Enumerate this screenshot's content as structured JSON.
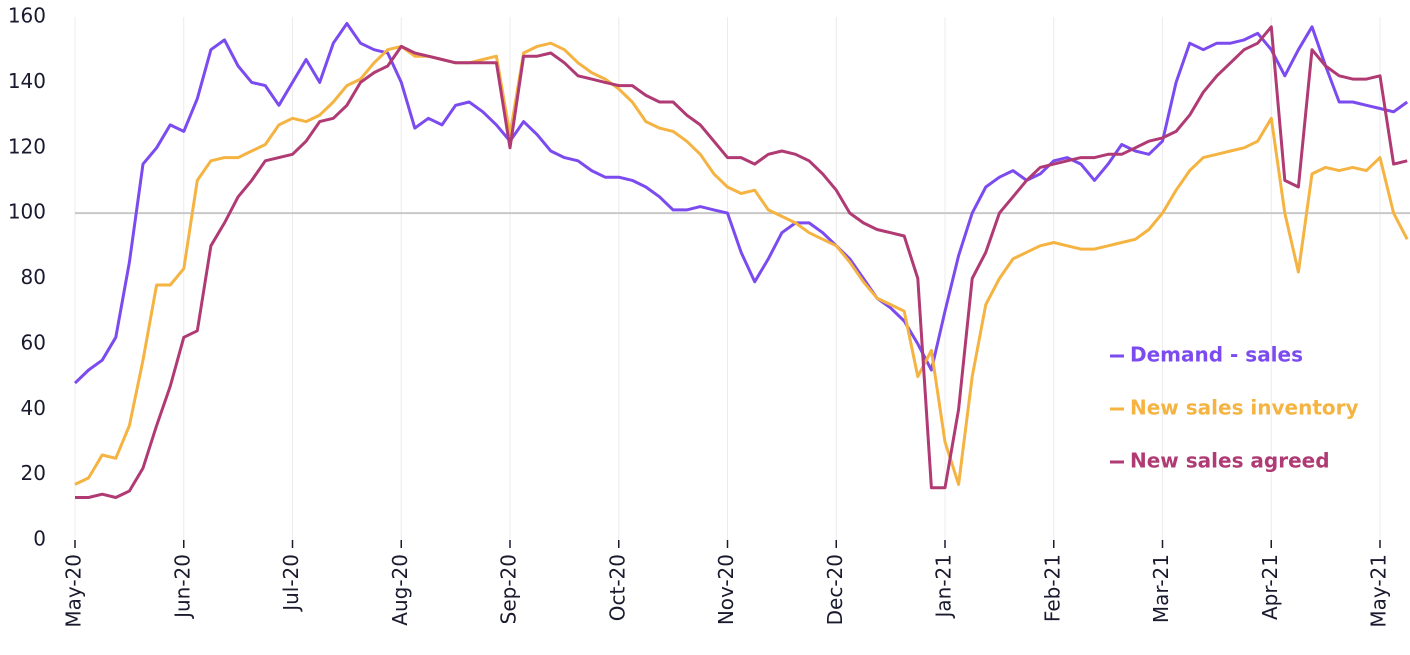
{
  "chart_data": {
    "type": "line",
    "categories": [
      "May-20",
      null,
      null,
      null,
      null,
      null,
      null,
      null,
      "Jun-20",
      null,
      null,
      null,
      null,
      null,
      null,
      null,
      "Jul-20",
      null,
      null,
      null,
      null,
      null,
      null,
      null,
      "Aug-20",
      null,
      null,
      null,
      null,
      null,
      null,
      null,
      "Sep-20",
      null,
      null,
      null,
      null,
      null,
      null,
      null,
      "Oct-20",
      null,
      null,
      null,
      null,
      null,
      null,
      null,
      "Nov-20",
      null,
      null,
      null,
      null,
      null,
      null,
      null,
      "Dec-20",
      null,
      null,
      null,
      null,
      null,
      null,
      null,
      "Jan-21",
      null,
      null,
      null,
      null,
      null,
      null,
      null,
      "Feb-21",
      null,
      null,
      null,
      null,
      null,
      null,
      null,
      "Mar-21",
      null,
      null,
      null,
      null,
      null,
      null,
      null,
      "Apr-21",
      null,
      null,
      null,
      null,
      null,
      null,
      null,
      "May-21",
      null,
      null
    ],
    "series": [
      {
        "name": "Demand - sales",
        "color": "#7b4bef",
        "values": [
          48,
          52,
          55,
          62,
          85,
          115,
          120,
          127,
          125,
          135,
          150,
          153,
          145,
          140,
          139,
          133,
          140,
          147,
          140,
          152,
          158,
          152,
          150,
          149,
          140,
          126,
          129,
          127,
          133,
          134,
          131,
          127,
          122,
          128,
          124,
          119,
          117,
          116,
          113,
          111,
          111,
          110,
          108,
          105,
          101,
          101,
          102,
          101,
          100,
          88,
          79,
          86,
          94,
          97,
          97,
          94,
          90,
          86,
          80,
          74,
          71,
          67,
          60,
          52,
          70,
          87,
          100,
          108,
          111,
          113,
          110,
          112,
          116,
          117,
          115,
          110,
          115,
          121,
          119,
          118,
          122,
          140,
          152,
          150,
          152,
          152,
          153,
          155,
          150,
          142,
          150,
          157,
          145,
          134,
          134,
          133,
          132,
          131,
          134
        ]
      },
      {
        "name": "New sales inventory",
        "color": "#f5b342",
        "values": [
          17,
          19,
          26,
          25,
          35,
          55,
          78,
          78,
          83,
          110,
          116,
          117,
          117,
          119,
          121,
          127,
          129,
          128,
          130,
          134,
          139,
          141,
          146,
          150,
          151,
          148,
          148,
          147,
          146,
          146,
          147,
          148,
          124,
          149,
          151,
          152,
          150,
          146,
          143,
          141,
          138,
          134,
          128,
          126,
          125,
          122,
          118,
          112,
          108,
          106,
          107,
          101,
          99,
          97,
          94,
          92,
          90,
          85,
          79,
          74,
          72,
          70,
          50,
          58,
          30,
          17,
          50,
          72,
          80,
          86,
          88,
          90,
          91,
          90,
          89,
          89,
          90,
          91,
          92,
          95,
          100,
          107,
          113,
          117,
          118,
          119,
          120,
          122,
          129,
          100,
          82,
          112,
          114,
          113,
          114,
          113,
          117,
          100,
          92
        ]
      },
      {
        "name": "New sales agreed",
        "color": "#b03a74",
        "values": [
          13,
          13,
          14,
          13,
          15,
          22,
          35,
          47,
          62,
          64,
          90,
          97,
          105,
          110,
          116,
          117,
          118,
          122,
          128,
          129,
          133,
          140,
          143,
          145,
          151,
          149,
          148,
          147,
          146,
          146,
          146,
          146,
          120,
          148,
          148,
          149,
          146,
          142,
          141,
          140,
          139,
          139,
          136,
          134,
          134,
          130,
          127,
          122,
          117,
          117,
          115,
          118,
          119,
          118,
          116,
          112,
          107,
          100,
          97,
          95,
          94,
          93,
          80,
          16,
          16,
          40,
          80,
          88,
          100,
          105,
          110,
          114,
          115,
          116,
          117,
          117,
          118,
          118,
          120,
          122,
          123,
          125,
          130,
          137,
          142,
          146,
          150,
          152,
          157,
          110,
          108,
          150,
          145,
          142,
          141,
          141,
          142,
          115,
          116
        ]
      }
    ],
    "ylim": [
      0,
      160
    ],
    "yticks": [
      0,
      20,
      40,
      60,
      80,
      100,
      120,
      140,
      160
    ],
    "reference_line": 100,
    "grid": true,
    "legend": "right"
  }
}
